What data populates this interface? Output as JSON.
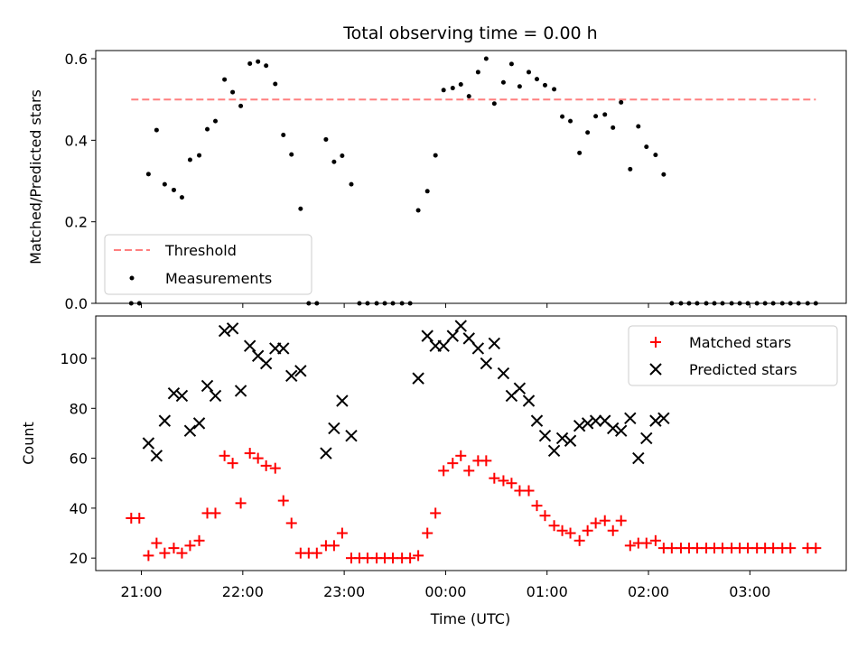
{
  "chart_data": [
    {
      "type": "scatter",
      "title": "Total observing time = 0.00 h",
      "xlabel": "",
      "ylabel": "Matched/Predicted stars",
      "ylim": [
        0,
        0.62
      ],
      "yticks": [
        "0.0",
        "0.2",
        "0.4",
        "0.6"
      ],
      "x_range_hours": [
        20.55,
        27.95
      ],
      "threshold": {
        "name": "Threshold",
        "y": 0.5,
        "x_start": 20.9,
        "x_end": 27.65,
        "color": "#ff7f7f"
      },
      "series": [
        {
          "name": "Measurements",
          "color": "#000000",
          "points": [
            [
              20.9,
              0
            ],
            [
              20.98,
              0
            ],
            [
              21.07,
              0.317
            ],
            [
              21.15,
              0.425
            ],
            [
              21.23,
              0.292
            ],
            [
              21.32,
              0.278
            ],
            [
              21.4,
              0.26
            ],
            [
              21.48,
              0.352
            ],
            [
              21.57,
              0.363
            ],
            [
              21.65,
              0.427
            ],
            [
              21.73,
              0.447
            ],
            [
              21.82,
              0.549
            ],
            [
              21.9,
              0.518
            ],
            [
              21.98,
              0.484
            ],
            [
              22.07,
              0.588
            ],
            [
              22.15,
              0.593
            ],
            [
              22.23,
              0.583
            ],
            [
              22.32,
              0.538
            ],
            [
              22.4,
              0.413
            ],
            [
              22.48,
              0.365
            ],
            [
              22.57,
              0.232
            ],
            [
              22.65,
              0
            ],
            [
              22.73,
              0
            ],
            [
              22.82,
              0.402
            ],
            [
              22.9,
              0.347
            ],
            [
              22.98,
              0.362
            ],
            [
              23.07,
              0.292
            ],
            [
              23.15,
              0
            ],
            [
              23.23,
              0
            ],
            [
              23.32,
              0
            ],
            [
              23.4,
              0
            ],
            [
              23.48,
              0
            ],
            [
              23.57,
              0
            ],
            [
              23.65,
              0
            ],
            [
              23.73,
              0.228
            ],
            [
              23.82,
              0.275
            ],
            [
              23.9,
              0.363
            ],
            [
              23.98,
              0.523
            ],
            [
              24.07,
              0.528
            ],
            [
              24.15,
              0.537
            ],
            [
              24.23,
              0.508
            ],
            [
              24.32,
              0.567
            ],
            [
              24.4,
              0.6
            ],
            [
              24.48,
              0.49
            ],
            [
              24.57,
              0.542
            ],
            [
              24.65,
              0.587
            ],
            [
              24.73,
              0.532
            ],
            [
              24.82,
              0.567
            ],
            [
              24.9,
              0.55
            ],
            [
              24.98,
              0.535
            ],
            [
              25.07,
              0.525
            ],
            [
              25.15,
              0.458
            ],
            [
              25.23,
              0.447
            ],
            [
              25.32,
              0.369
            ],
            [
              25.4,
              0.419
            ],
            [
              25.48,
              0.459
            ],
            [
              25.57,
              0.463
            ],
            [
              25.65,
              0.431
            ],
            [
              25.73,
              0.493
            ],
            [
              25.82,
              0.329
            ],
            [
              25.9,
              0.434
            ],
            [
              25.98,
              0.384
            ],
            [
              26.07,
              0.364
            ],
            [
              26.15,
              0.316
            ],
            [
              26.23,
              0
            ],
            [
              26.32,
              0
            ],
            [
              26.4,
              0
            ],
            [
              26.48,
              0
            ],
            [
              26.57,
              0
            ],
            [
              26.65,
              0
            ],
            [
              26.73,
              0
            ],
            [
              26.82,
              0
            ],
            [
              26.9,
              0
            ],
            [
              26.98,
              0
            ],
            [
              27.07,
              0
            ],
            [
              27.15,
              0
            ],
            [
              27.23,
              0
            ],
            [
              27.32,
              0
            ],
            [
              27.4,
              0
            ],
            [
              27.48,
              0
            ],
            [
              27.57,
              0
            ],
            [
              27.65,
              0
            ]
          ]
        }
      ],
      "legend": {
        "position": "lower left",
        "entries": [
          "Threshold",
          "Measurements"
        ]
      }
    },
    {
      "type": "scatter",
      "xlabel": "Time (UTC)",
      "ylabel": "Count",
      "ylim": [
        15,
        117
      ],
      "yticks": [
        "20",
        "40",
        "60",
        "80",
        "100"
      ],
      "x_range_hours": [
        20.55,
        27.95
      ],
      "xticks": [
        "21:00",
        "22:00",
        "23:00",
        "00:00",
        "01:00",
        "02:00",
        "03:00"
      ],
      "series": [
        {
          "name": "Matched stars",
          "marker": "+",
          "color": "#ff0000",
          "points": [
            [
              20.9,
              36
            ],
            [
              20.98,
              36
            ],
            [
              21.07,
              21
            ],
            [
              21.15,
              26
            ],
            [
              21.23,
              22
            ],
            [
              21.32,
              24
            ],
            [
              21.4,
              22
            ],
            [
              21.48,
              25
            ],
            [
              21.57,
              27
            ],
            [
              21.65,
              38
            ],
            [
              21.73,
              38
            ],
            [
              21.82,
              61
            ],
            [
              21.9,
              58
            ],
            [
              21.98,
              42
            ],
            [
              22.07,
              62
            ],
            [
              22.15,
              60
            ],
            [
              22.23,
              57
            ],
            [
              22.32,
              56
            ],
            [
              22.4,
              43
            ],
            [
              22.48,
              34
            ],
            [
              22.57,
              22
            ],
            [
              22.65,
              22
            ],
            [
              22.73,
              22
            ],
            [
              22.82,
              25
            ],
            [
              22.9,
              25
            ],
            [
              22.98,
              30
            ],
            [
              23.07,
              20
            ],
            [
              23.15,
              20
            ],
            [
              23.23,
              20
            ],
            [
              23.32,
              20
            ],
            [
              23.4,
              20
            ],
            [
              23.48,
              20
            ],
            [
              23.57,
              20
            ],
            [
              23.65,
              20
            ],
            [
              23.73,
              21
            ],
            [
              23.82,
              30
            ],
            [
              23.9,
              38
            ],
            [
              23.98,
              55
            ],
            [
              24.07,
              58
            ],
            [
              24.15,
              61
            ],
            [
              24.23,
              55
            ],
            [
              24.32,
              59
            ],
            [
              24.4,
              59
            ],
            [
              24.48,
              52
            ],
            [
              24.57,
              51
            ],
            [
              24.65,
              50
            ],
            [
              24.73,
              47
            ],
            [
              24.82,
              47
            ],
            [
              24.9,
              41
            ],
            [
              24.98,
              37
            ],
            [
              25.07,
              33
            ],
            [
              25.15,
              31
            ],
            [
              25.23,
              30
            ],
            [
              25.32,
              27
            ],
            [
              25.4,
              31
            ],
            [
              25.48,
              34
            ],
            [
              25.57,
              35
            ],
            [
              25.65,
              31
            ],
            [
              25.73,
              35
            ],
            [
              25.82,
              25
            ],
            [
              25.9,
              26
            ],
            [
              25.98,
              26
            ],
            [
              26.07,
              27
            ],
            [
              26.15,
              24
            ],
            [
              26.23,
              24
            ],
            [
              26.32,
              24
            ],
            [
              26.4,
              24
            ],
            [
              26.48,
              24
            ],
            [
              26.57,
              24
            ],
            [
              26.65,
              24
            ],
            [
              26.73,
              24
            ],
            [
              26.82,
              24
            ],
            [
              26.9,
              24
            ],
            [
              26.98,
              24
            ],
            [
              27.07,
              24
            ],
            [
              27.15,
              24
            ],
            [
              27.23,
              24
            ],
            [
              27.32,
              24
            ],
            [
              27.4,
              24
            ],
            [
              27.57,
              24
            ],
            [
              27.65,
              24
            ]
          ]
        },
        {
          "name": "Predicted stars",
          "marker": "x",
          "color": "#000000",
          "points": [
            [
              21.07,
              66
            ],
            [
              21.15,
              61
            ],
            [
              21.23,
              75
            ],
            [
              21.32,
              86
            ],
            [
              21.4,
              85
            ],
            [
              21.48,
              71
            ],
            [
              21.57,
              74
            ],
            [
              21.65,
              89
            ],
            [
              21.73,
              85
            ],
            [
              21.82,
              111
            ],
            [
              21.9,
              112
            ],
            [
              21.98,
              87
            ],
            [
              22.07,
              105
            ],
            [
              22.15,
              101
            ],
            [
              22.23,
              98
            ],
            [
              22.32,
              104
            ],
            [
              22.4,
              104
            ],
            [
              22.48,
              93
            ],
            [
              22.57,
              95
            ],
            [
              22.82,
              62
            ],
            [
              22.9,
              72
            ],
            [
              22.98,
              83
            ],
            [
              23.07,
              69
            ],
            [
              23.73,
              92
            ],
            [
              23.82,
              109
            ],
            [
              23.9,
              105
            ],
            [
              23.98,
              105
            ],
            [
              24.07,
              109
            ],
            [
              24.15,
              113
            ],
            [
              24.23,
              108
            ],
            [
              24.32,
              104
            ],
            [
              24.4,
              98
            ],
            [
              24.48,
              106
            ],
            [
              24.57,
              94
            ],
            [
              24.65,
              85
            ],
            [
              24.73,
              88
            ],
            [
              24.82,
              83
            ],
            [
              24.9,
              75
            ],
            [
              24.98,
              69
            ],
            [
              25.07,
              63
            ],
            [
              25.15,
              68
            ],
            [
              25.23,
              67
            ],
            [
              25.32,
              73
            ],
            [
              25.4,
              74
            ],
            [
              25.48,
              75
            ],
            [
              25.57,
              75
            ],
            [
              25.65,
              72
            ],
            [
              25.73,
              71
            ],
            [
              25.82,
              76
            ],
            [
              25.9,
              60
            ],
            [
              25.98,
              68
            ],
            [
              26.07,
              75
            ],
            [
              26.15,
              76
            ]
          ]
        }
      ],
      "legend": {
        "position": "upper right",
        "entries": [
          "Matched stars",
          "Predicted stars"
        ]
      }
    }
  ]
}
